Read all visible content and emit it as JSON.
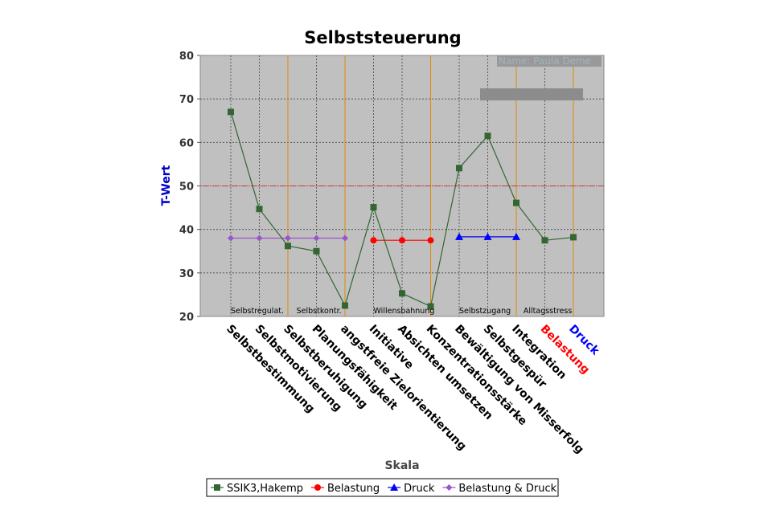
{
  "chart_data": {
    "type": "line",
    "title": "Selbststeuerung",
    "xlabel": "Skala",
    "ylabel": "T-Wert",
    "ylim": [
      20,
      80
    ],
    "yticks": [
      20,
      30,
      40,
      50,
      60,
      70,
      80
    ],
    "reference_line": 50,
    "name_label": "Name: Paula Deme",
    "categories": [
      "Selbstbestimmung",
      "Selbstmotivierung",
      "Selbstberuhigung",
      "Planungsfähigkeit",
      "angstfreie Zielorientierung",
      "Initiative",
      "Absichten umsetzen",
      "Konzentrationsstärke",
      "Bewältigung von Misserfolg",
      "Selbstgespür",
      "Integration",
      "Belastung",
      "Druck"
    ],
    "category_colors": [
      "#000000",
      "#000000",
      "#000000",
      "#000000",
      "#000000",
      "#000000",
      "#000000",
      "#000000",
      "#000000",
      "#000000",
      "#000000",
      "#ff0000",
      "#0000ff"
    ],
    "group_labels": [
      {
        "text": "Selbstregulat.",
        "at": 0
      },
      {
        "text": "Selbstkontr.",
        "at": 2.3
      },
      {
        "text": "Willensbahnung",
        "at": 5
      },
      {
        "text": "Selbstzugang",
        "at": 8
      },
      {
        "text": "Alltagsstress",
        "at": 10.25
      }
    ],
    "group_separators": [
      2,
      4,
      7,
      10,
      12
    ],
    "series": [
      {
        "name": "SSIK3,Hakemp",
        "color": "#336633",
        "marker": "square",
        "values": [
          67,
          44.7,
          36.2,
          35,
          22.5,
          45.1,
          25.3,
          22.3,
          54.1,
          61.5,
          46.1,
          37.5,
          38.2
        ]
      },
      {
        "name": "Belastung",
        "color": "#ff0000",
        "marker": "circle",
        "values": [
          null,
          null,
          null,
          null,
          null,
          37.5,
          37.5,
          37.5,
          null,
          null,
          null,
          null,
          null
        ]
      },
      {
        "name": "Druck",
        "color": "#0000ff",
        "marker": "triangle",
        "values": [
          null,
          null,
          null,
          null,
          null,
          null,
          null,
          null,
          38.3,
          38.3,
          38.3,
          null,
          null
        ]
      },
      {
        "name": "Belastung & Druck",
        "color": "#9955cc",
        "marker": "diamond",
        "values": [
          38,
          38,
          38,
          38,
          38,
          null,
          null,
          null,
          null,
          null,
          null,
          null,
          null
        ]
      }
    ],
    "grid": true,
    "legend_position": "bottom"
  }
}
